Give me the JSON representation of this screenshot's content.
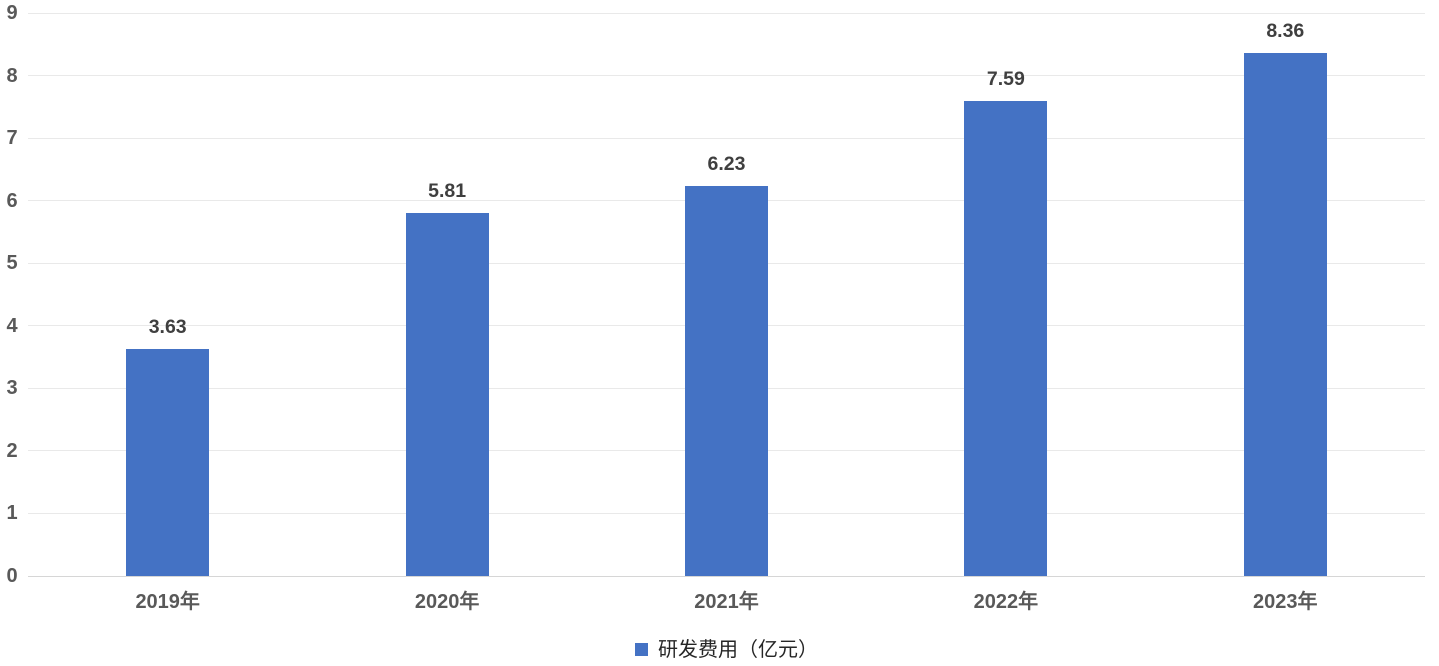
{
  "chart_data": {
    "type": "bar",
    "categories": [
      "2019年",
      "2020年",
      "2021年",
      "2022年",
      "2023年"
    ],
    "values": [
      3.63,
      5.81,
      6.23,
      7.59,
      8.36
    ],
    "data_labels": [
      "3.63",
      "5.81",
      "6.23",
      "7.59",
      "8.36"
    ],
    "series": [
      {
        "name": "研发费用（亿元）",
        "values": [
          3.63,
          5.81,
          6.23,
          7.59,
          8.36
        ]
      }
    ],
    "title": "",
    "xlabel": "",
    "ylabel": "",
    "ylim": [
      0,
      9
    ],
    "yticks": [
      "0",
      "1",
      "2",
      "3",
      "4",
      "5",
      "6",
      "7",
      "8",
      "9"
    ],
    "grid": true,
    "bar_color": "#4472C4",
    "legend": {
      "label": "研发费用（亿元）",
      "position": "bottom-center",
      "marker_color": "#4472C4"
    }
  },
  "colors": {
    "bar": "#4472C4",
    "gridline": "#E9E9E9",
    "axis_line": "#D6D6D6",
    "tick_label": "#595959",
    "data_label": "#3F3F3F",
    "legend_text": "#262626",
    "background": "#FFFFFF"
  }
}
